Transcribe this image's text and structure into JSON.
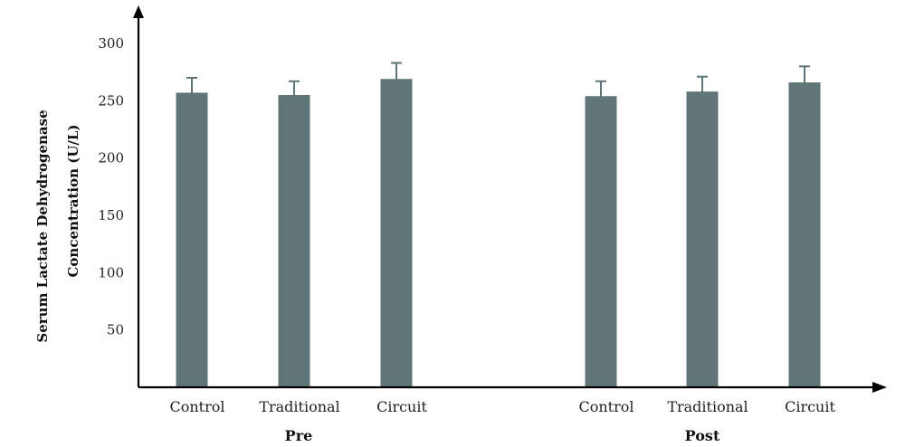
{
  "chart_data": {
    "type": "bar",
    "ylabel_line1": "Serum Lactate Dehydrogenase",
    "ylabel_line2": "Concentration (U/L)",
    "ylim": [
      0,
      300
    ],
    "yticks": [
      50,
      100,
      150,
      200,
      250,
      300
    ],
    "grid": false,
    "groups": [
      {
        "name": "Pre",
        "categories": [
          "Control",
          "Traditional",
          "Circuit"
        ],
        "values": [
          257,
          255,
          269
        ],
        "errors": [
          13,
          12,
          14
        ]
      },
      {
        "name": "Post",
        "categories": [
          "Control",
          "Traditional",
          "Circuit"
        ],
        "values": [
          254,
          258,
          266
        ],
        "errors": [
          13,
          13,
          14
        ]
      }
    ],
    "bar_color": "#5f7577",
    "error_color": "#5f7577"
  }
}
